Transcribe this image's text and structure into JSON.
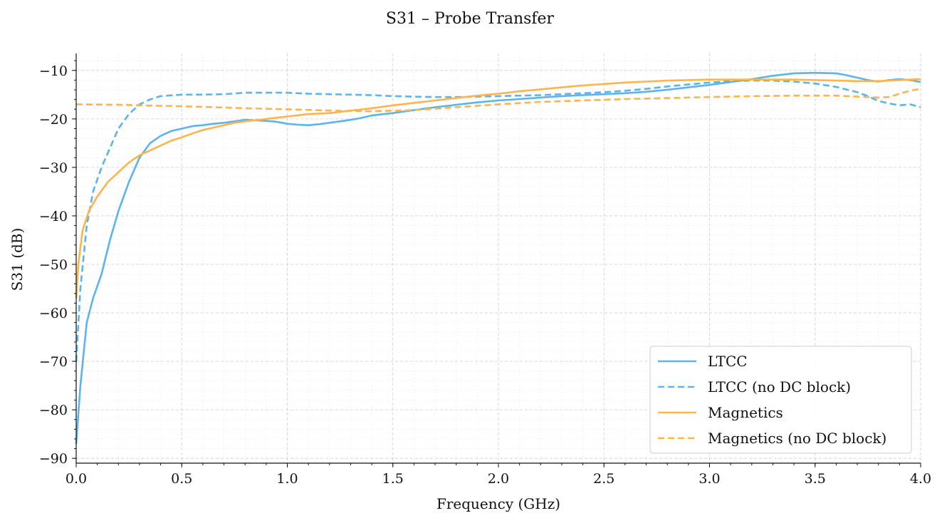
{
  "chart_data": {
    "type": "line",
    "title": "S31 – Probe Transfer",
    "xlabel": "Frequency (GHz)",
    "ylabel": "S31 (dB)",
    "xlim": [
      0,
      4
    ],
    "ylim": [
      -91,
      -6.5
    ],
    "xticks": [
      0.0,
      0.5,
      1.0,
      1.5,
      2.0,
      2.5,
      3.0,
      3.5,
      4.0
    ],
    "xtick_labels": [
      "0.0",
      "0.5",
      "1.0",
      "1.5",
      "2.0",
      "2.5",
      "3.0",
      "3.5",
      "4.0"
    ],
    "yticks": [
      -90,
      -80,
      -70,
      -60,
      -50,
      -40,
      -30,
      -20,
      -10
    ],
    "ytick_labels": [
      "−90",
      "−80",
      "−70",
      "−60",
      "−50",
      "−40",
      "−30",
      "−20",
      "−10"
    ],
    "grid": true,
    "legend_position": "bottom-right",
    "series": [
      {
        "name": "LTCC",
        "color": "#5ab4ee",
        "dash": "solid",
        "x": [
          0.0,
          0.02,
          0.05,
          0.08,
          0.12,
          0.16,
          0.2,
          0.25,
          0.3,
          0.35,
          0.4,
          0.45,
          0.5,
          0.55,
          0.6,
          0.65,
          0.7,
          0.75,
          0.8,
          0.85,
          0.9,
          0.95,
          1.0,
          1.05,
          1.1,
          1.15,
          1.2,
          1.25,
          1.3,
          1.35,
          1.4,
          1.5,
          1.6,
          1.7,
          1.8,
          1.9,
          2.0,
          2.1,
          2.2,
          2.3,
          2.4,
          2.5,
          2.6,
          2.7,
          2.8,
          2.9,
          3.0,
          3.1,
          3.2,
          3.3,
          3.4,
          3.5,
          3.6,
          3.65,
          3.7,
          3.75,
          3.8,
          3.85,
          3.9,
          3.95,
          4.0
        ],
        "y": [
          -87,
          -75,
          -62,
          -57,
          -52,
          -45,
          -39,
          -33,
          -28,
          -25,
          -23.5,
          -22.5,
          -22,
          -21.5,
          -21.3,
          -21,
          -20.8,
          -20.5,
          -20.2,
          -20.3,
          -20.4,
          -20.6,
          -21,
          -21.2,
          -21.3,
          -21.1,
          -20.8,
          -20.5,
          -20.2,
          -19.8,
          -19.3,
          -18.8,
          -18.2,
          -17.6,
          -17.1,
          -16.6,
          -16.2,
          -15.9,
          -15.6,
          -15.3,
          -15.1,
          -14.9,
          -14.7,
          -14.4,
          -14.0,
          -13.5,
          -13.0,
          -12.4,
          -11.8,
          -11.1,
          -10.6,
          -10.5,
          -10.6,
          -11.0,
          -11.5,
          -12.0,
          -12.3,
          -12.0,
          -11.8,
          -12.0,
          -12.4
        ]
      },
      {
        "name": "LTCC (no DC block)",
        "color": "#5ab4ee",
        "dash": "dashed",
        "x": [
          0.0,
          0.02,
          0.05,
          0.08,
          0.12,
          0.16,
          0.2,
          0.25,
          0.3,
          0.35,
          0.4,
          0.5,
          0.6,
          0.7,
          0.8,
          0.9,
          1.0,
          1.1,
          1.2,
          1.3,
          1.4,
          1.5,
          1.6,
          1.7,
          1.8,
          1.9,
          2.0,
          2.1,
          2.2,
          2.3,
          2.4,
          2.5,
          2.6,
          2.7,
          2.8,
          2.9,
          3.0,
          3.1,
          3.2,
          3.3,
          3.4,
          3.5,
          3.6,
          3.7,
          3.75,
          3.8,
          3.85,
          3.9,
          3.95,
          4.0
        ],
        "y": [
          -70,
          -55,
          -42,
          -35,
          -30,
          -26,
          -22,
          -19,
          -17,
          -16,
          -15.3,
          -15,
          -15,
          -14.9,
          -14.6,
          -14.6,
          -14.6,
          -14.8,
          -14.9,
          -15.0,
          -15.1,
          -15.3,
          -15.4,
          -15.5,
          -15.5,
          -15.4,
          -15.3,
          -15.2,
          -15.1,
          -14.9,
          -14.7,
          -14.5,
          -14.2,
          -13.8,
          -13.3,
          -12.9,
          -12.5,
          -12.2,
          -12.1,
          -12.1,
          -12.3,
          -12.7,
          -13.4,
          -14.5,
          -15.3,
          -16.3,
          -16.8,
          -17.2,
          -17.0,
          -17.6
        ]
      },
      {
        "name": "Magnetics",
        "color": "#fdb44b",
        "dash": "solid",
        "x": [
          0.0,
          0.01,
          0.03,
          0.06,
          0.1,
          0.15,
          0.2,
          0.25,
          0.3,
          0.35,
          0.4,
          0.45,
          0.5,
          0.55,
          0.6,
          0.65,
          0.7,
          0.75,
          0.8,
          0.9,
          1.0,
          1.1,
          1.2,
          1.3,
          1.4,
          1.5,
          1.6,
          1.7,
          1.8,
          1.9,
          2.0,
          2.1,
          2.2,
          2.3,
          2.4,
          2.5,
          2.6,
          2.7,
          2.8,
          2.9,
          3.0,
          3.1,
          3.2,
          3.3,
          3.4,
          3.5,
          3.6,
          3.7,
          3.8,
          3.9,
          4.0
        ],
        "y": [
          -57,
          -50,
          -43,
          -39,
          -36,
          -33,
          -31,
          -29,
          -27.5,
          -26.5,
          -25.5,
          -24.5,
          -23.8,
          -23.0,
          -22.3,
          -21.8,
          -21.3,
          -20.8,
          -20.5,
          -20.0,
          -19.5,
          -19.0,
          -18.8,
          -18.3,
          -17.8,
          -17.2,
          -16.7,
          -16.2,
          -15.7,
          -15.2,
          -14.8,
          -14.3,
          -13.9,
          -13.5,
          -13.1,
          -12.8,
          -12.5,
          -12.3,
          -12.1,
          -12.0,
          -11.9,
          -11.9,
          -11.9,
          -11.9,
          -11.9,
          -12.0,
          -12.1,
          -12.2,
          -12.2,
          -12.0,
          -11.8
        ]
      },
      {
        "name": "Magnetics (no DC block)",
        "color": "#fdb44b",
        "dash": "dashed",
        "x": [
          0.0,
          0.2,
          0.4,
          0.6,
          0.8,
          1.0,
          1.2,
          1.4,
          1.6,
          1.8,
          2.0,
          2.2,
          2.4,
          2.6,
          2.8,
          3.0,
          3.2,
          3.4,
          3.6,
          3.7,
          3.8,
          3.85,
          3.9,
          3.95,
          4.0
        ],
        "y": [
          -17.0,
          -17.1,
          -17.3,
          -17.5,
          -17.8,
          -18.0,
          -18.3,
          -18.4,
          -18.2,
          -17.6,
          -17.0,
          -16.5,
          -16.2,
          -15.9,
          -15.7,
          -15.5,
          -15.3,
          -15.2,
          -15.2,
          -15.4,
          -15.6,
          -15.5,
          -14.8,
          -14.2,
          -13.8
        ]
      }
    ]
  }
}
